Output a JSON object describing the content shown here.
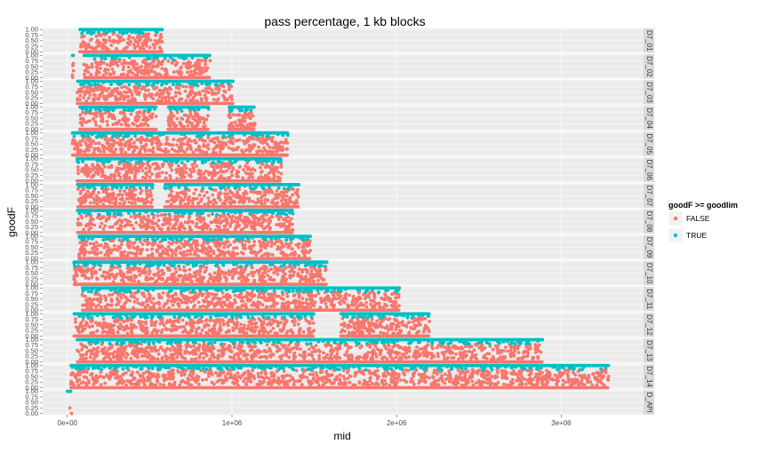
{
  "chart_data": {
    "type": "scatter",
    "title": "pass percentage,  1 kb blocks",
    "xlabel": "mid",
    "ylabel": "goodF",
    "x_ticks": [
      {
        "value": 0,
        "label": "0e+00"
      },
      {
        "value": 1000000,
        "label": "1e+06"
      },
      {
        "value": 2000000,
        "label": "2e+06"
      },
      {
        "value": 3000000,
        "label": "3e+06"
      }
    ],
    "xlim": [
      -150000,
      3500000
    ],
    "y_ticks": [
      {
        "value": 1.0,
        "label": "1.00"
      },
      {
        "value": 0.75,
        "label": "0.75"
      },
      {
        "value": 0.5,
        "label": "0.50"
      },
      {
        "value": 0.25,
        "label": "0.25"
      },
      {
        "value": 0.0,
        "label": "0.00"
      }
    ],
    "ylim": [
      -0.05,
      1.05
    ],
    "legend": {
      "title": "goodF >= goodlim",
      "position": "right",
      "entries": [
        {
          "label": "FALSE",
          "color": "#F8766D"
        },
        {
          "label": "TRUE",
          "color": "#00BFC4"
        }
      ]
    },
    "colors": {
      "false": "#F8766D",
      "true": "#00BFC4",
      "panel": "#EBEBEB",
      "strip": "#D9D9D9",
      "grid": "#FFFFFF"
    },
    "goodlim_approx": 0.8,
    "facets": [
      {
        "label": "D7_01",
        "x_start": 75000,
        "x_end": 580000,
        "gaps": []
      },
      {
        "label": "D7_02",
        "x_start": 30000,
        "x_end": 870000,
        "gaps": [
          [
            40000,
            100000
          ]
        ]
      },
      {
        "label": "D7_03",
        "x_start": 60000,
        "x_end": 1010000,
        "gaps": []
      },
      {
        "label": "D7_04",
        "x_start": 75000,
        "x_end": 1140000,
        "gaps": [
          [
            540000,
            610000
          ],
          [
            860000,
            980000
          ]
        ]
      },
      {
        "label": "D7_05",
        "x_start": 30000,
        "x_end": 1340000,
        "gaps": []
      },
      {
        "label": "D7_06",
        "x_start": 60000,
        "x_end": 1300000,
        "gaps": []
      },
      {
        "label": "D7_07",
        "x_start": 60000,
        "x_end": 1410000,
        "gaps": [
          [
            520000,
            590000
          ]
        ]
      },
      {
        "label": "D7_08",
        "x_start": 60000,
        "x_end": 1370000,
        "gaps": []
      },
      {
        "label": "D7_09",
        "x_start": 70000,
        "x_end": 1480000,
        "gaps": []
      },
      {
        "label": "D7_10",
        "x_start": 40000,
        "x_end": 1580000,
        "gaps": []
      },
      {
        "label": "D7_11",
        "x_start": 90000,
        "x_end": 2020000,
        "gaps": []
      },
      {
        "label": "D7_12",
        "x_start": 40000,
        "x_end": 2200000,
        "gaps": [
          [
            1500000,
            1660000
          ]
        ]
      },
      {
        "label": "D7_13",
        "x_start": 60000,
        "x_end": 2890000,
        "gaps": []
      },
      {
        "label": "D7_14",
        "x_start": 20000,
        "x_end": 3290000,
        "gaps": []
      },
      {
        "label": "D_API",
        "x_start": 0,
        "x_end": 30000,
        "gaps": []
      }
    ]
  }
}
